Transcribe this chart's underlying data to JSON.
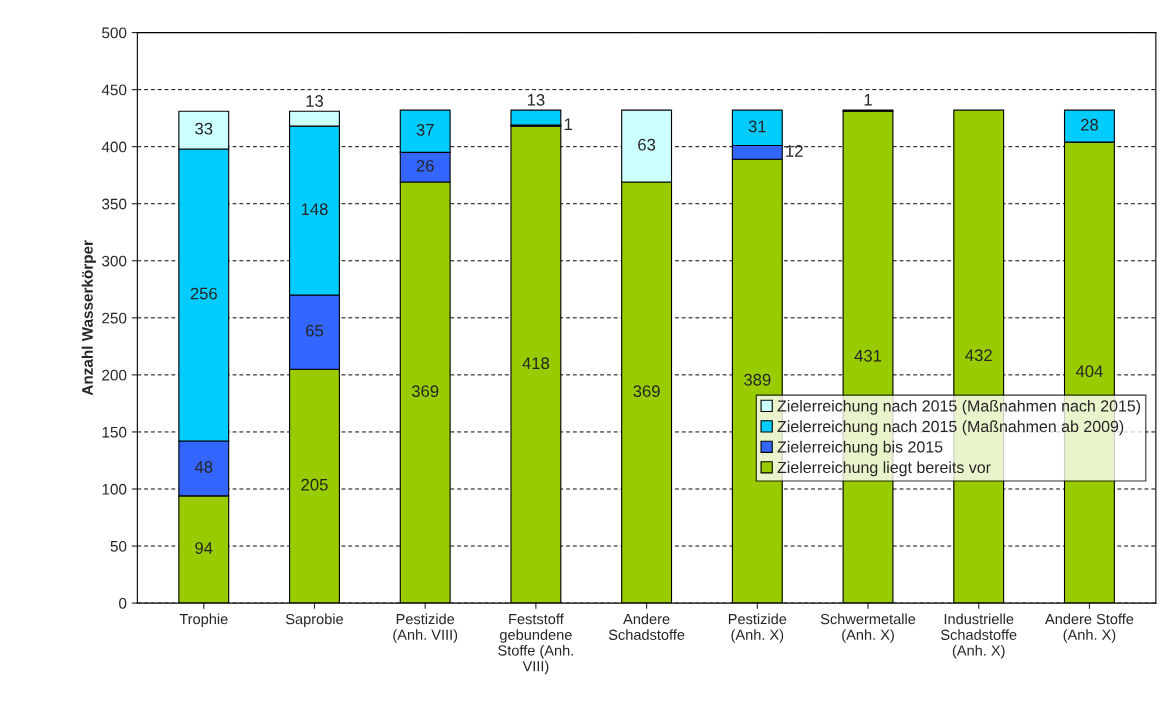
{
  "chart_data": {
    "type": "bar",
    "stacked": true,
    "ylabel": "Anzahl Wasserkörper",
    "categories": [
      "Trophie",
      "Saprobie",
      "Pestizide\n(Anh. VIII)",
      "Feststoff\ngebundene\nStoffe (Anh.\nVIII)",
      "Andere\nSchadstoffe",
      "Pestizide\n(Anh. X)",
      "Schwermetalle\n(Anh. X)",
      "Industrielle\nSchadstoffe\n(Anh. X)",
      "Andere Stoffe\n(Anh. X)"
    ],
    "series": [
      {
        "name": "Zielerreichung liegt bereits vor",
        "color": "#99cc00",
        "values": [
          94,
          205,
          369,
          418,
          369,
          389,
          431,
          432,
          404
        ],
        "value_labels": [
          "94",
          "205",
          "369",
          "418",
          "369",
          "389",
          "431",
          "432",
          "404"
        ]
      },
      {
        "name": "Zielerreichung bis 2015",
        "color": "#3366ff",
        "values": [
          48,
          65,
          26,
          1,
          0,
          12,
          1,
          0,
          0
        ],
        "value_labels": [
          "48",
          "65",
          "26",
          "1",
          null,
          "12",
          "1",
          null,
          null
        ]
      },
      {
        "name": "Zielerreichung nach 2015 (Maßnahmen ab 2009)",
        "color": "#00ccff",
        "values": [
          256,
          148,
          37,
          13,
          0,
          31,
          0,
          0,
          28
        ],
        "value_labels": [
          "256",
          "148",
          "37",
          "13",
          null,
          "31",
          null,
          null,
          "28"
        ]
      },
      {
        "name": "Zielerreichung nach 2015 (Maßnahmen nach 2015)",
        "color": "#ccffff",
        "values": [
          33,
          13,
          0,
          0,
          63,
          0,
          0,
          0,
          0
        ],
        "value_labels": [
          "33",
          "13",
          null,
          null,
          "63",
          null,
          null,
          null,
          null
        ]
      }
    ],
    "ylim": [
      0,
      500
    ],
    "yticks": [
      0,
      50,
      100,
      150,
      200,
      250,
      300,
      350,
      400,
      450,
      500
    ],
    "grid": "y",
    "legend": "bottom right"
  }
}
